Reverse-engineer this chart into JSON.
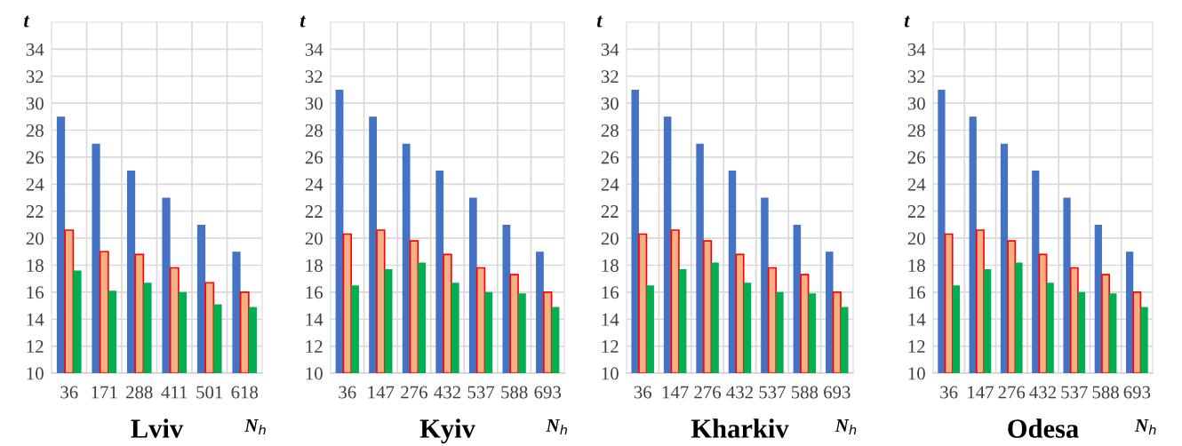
{
  "chart_data": [
    {
      "type": "bar",
      "title": "Lviv",
      "xlabel": "N$_{h}$",
      "ylabel": "t",
      "categories": [
        "36",
        "171",
        "288",
        "411",
        "501",
        "618"
      ],
      "ylim": [
        10,
        36
      ],
      "yticks": [
        10,
        12,
        14,
        16,
        18,
        20,
        22,
        24,
        26,
        28,
        30,
        32,
        34
      ],
      "grid": true,
      "series": [
        {
          "color": "#4472c4",
          "values": [
            29,
            27,
            25,
            23,
            21,
            19
          ]
        },
        {
          "color": "#f4b183",
          "values": [
            20.6,
            19,
            18.8,
            17.8,
            16.7,
            16
          ]
        },
        {
          "color": "#00b050",
          "values": [
            17.6,
            16.1,
            16.7,
            16.0,
            15.1,
            14.9
          ]
        }
      ]
    },
    {
      "type": "bar",
      "title": "Kyiv",
      "xlabel": "N$_{h}$",
      "ylabel": "t",
      "categories": [
        "36",
        "147",
        "276",
        "432",
        "537",
        "588",
        "693"
      ],
      "ylim": [
        10,
        36
      ],
      "yticks": [
        10,
        12,
        14,
        16,
        18,
        20,
        22,
        24,
        26,
        28,
        30,
        32,
        34
      ],
      "grid": true,
      "series": [
        {
          "color": "#4472c4",
          "values": [
            31,
            29,
            27,
            25,
            23,
            21,
            19
          ]
        },
        {
          "color": "#f4b183",
          "values": [
            20.3,
            20.6,
            19.8,
            18.8,
            17.8,
            17.3,
            16.0
          ]
        },
        {
          "color": "#00b050",
          "values": [
            16.5,
            17.7,
            18.2,
            16.7,
            16.0,
            15.9,
            14.9
          ]
        }
      ]
    },
    {
      "type": "bar",
      "title": "Kharkiv",
      "xlabel": "N$_{h}$",
      "ylabel": "t",
      "categories": [
        "36",
        "147",
        "276",
        "432",
        "537",
        "588",
        "693"
      ],
      "ylim": [
        10,
        36
      ],
      "yticks": [
        10,
        12,
        14,
        16,
        18,
        20,
        22,
        24,
        26,
        28,
        30,
        32,
        34
      ],
      "grid": true,
      "series": [
        {
          "color": "#4472c4",
          "values": [
            31,
            29,
            27,
            25,
            23,
            21,
            19
          ]
        },
        {
          "color": "#f4b183",
          "values": [
            20.3,
            20.6,
            19.8,
            18.8,
            17.8,
            17.3,
            16.0
          ]
        },
        {
          "color": "#00b050",
          "values": [
            16.5,
            17.7,
            18.2,
            16.7,
            16.0,
            15.9,
            14.9
          ]
        }
      ]
    },
    {
      "type": "bar",
      "title": "Odesa",
      "xlabel": "N$_{h}$",
      "ylabel": "t",
      "categories": [
        "36",
        "147",
        "276",
        "432",
        "537",
        "588",
        "693"
      ],
      "ylim": [
        10,
        36
      ],
      "yticks": [
        10,
        12,
        14,
        16,
        18,
        20,
        22,
        24,
        26,
        28,
        30,
        32,
        34
      ],
      "grid": true,
      "series": [
        {
          "color": "#4472c4",
          "values": [
            31,
            29,
            27,
            25,
            23,
            21,
            19
          ]
        },
        {
          "color": "#f4b183",
          "values": [
            20.3,
            20.6,
            19.8,
            18.8,
            17.8,
            17.3,
            16.0
          ]
        },
        {
          "color": "#00b050",
          "values": [
            16.5,
            17.7,
            18.2,
            16.7,
            16.0,
            15.9,
            14.9
          ]
        }
      ]
    }
  ]
}
